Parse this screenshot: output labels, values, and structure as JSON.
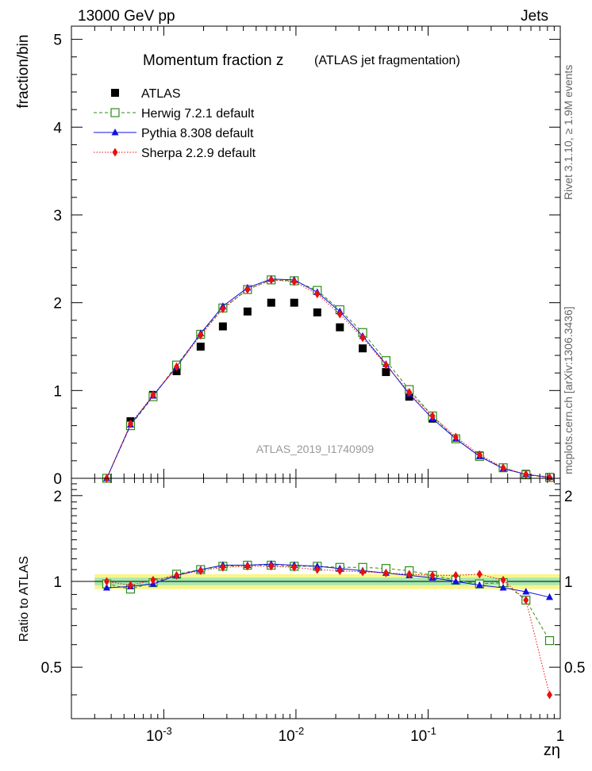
{
  "header": {
    "energy_label": "13000 GeV pp",
    "category_label": "Jets"
  },
  "sidebar": {
    "rivet_label": "Rivet 3.1.10, ≥ 1.9M events",
    "mcplots_label": "mcplots.cern.ch [arXiv:1306.3436]"
  },
  "chart_data": [
    {
      "type": "scatter",
      "title": "Momentum fraction z",
      "subtitle": "(ATLAS jet fragmentation)",
      "watermark": "ATLAS_2019_I1740909",
      "xlabel": "",
      "ylabel": "fraction/bin",
      "xscale": "log",
      "xlim": [
        0.0002,
        1
      ],
      "ylim": [
        0,
        5.15
      ],
      "yticks": [
        1,
        2,
        3,
        4,
        5
      ],
      "xtick_labels": [
        "10^-3",
        "10^-2",
        "10^-1",
        "1"
      ],
      "legend_position": "top-left",
      "x": [
        0.00037,
        0.00056,
        0.00083,
        0.00125,
        0.0019,
        0.0028,
        0.0043,
        0.0065,
        0.0097,
        0.0145,
        0.0215,
        0.032,
        0.048,
        0.072,
        0.108,
        0.162,
        0.245,
        0.37,
        0.55,
        0.83
      ],
      "series": [
        {
          "name": "ATLAS",
          "color": "#000000",
          "marker": "square",
          "values": [
            0.0,
            0.65,
            0.95,
            1.22,
            1.5,
            1.73,
            1.9,
            2.0,
            2.0,
            1.89,
            1.72,
            1.48,
            1.21,
            0.93,
            0.68,
            0.45,
            0.26,
            0.12,
            0.05,
            0.015
          ]
        },
        {
          "name": "Herwig 7.2.1 default",
          "color": "#2e8b18",
          "marker": "open-square",
          "dash": "4,3",
          "values": [
            0.0,
            0.6,
            0.93,
            1.29,
            1.64,
            1.94,
            2.15,
            2.26,
            2.25,
            2.14,
            1.92,
            1.66,
            1.34,
            1.01,
            0.71,
            0.45,
            0.25,
            0.12,
            0.04,
            0.01
          ]
        },
        {
          "name": "Pythia 8.308 default",
          "color": "#1010e0",
          "marker": "triangle",
          "dash": "",
          "values": [
            0.0,
            0.61,
            0.94,
            1.27,
            1.65,
            1.96,
            2.17,
            2.27,
            2.26,
            2.12,
            1.9,
            1.62,
            1.3,
            0.96,
            0.68,
            0.45,
            0.25,
            0.11,
            0.045,
            0.012
          ]
        },
        {
          "name": "Sherpa 2.2.9 default",
          "color": "#e81010",
          "marker": "diamond",
          "dash": "1.5,2",
          "values": [
            0.0,
            0.62,
            0.95,
            1.27,
            1.63,
            1.93,
            2.15,
            2.26,
            2.24,
            2.1,
            1.87,
            1.6,
            1.29,
            0.98,
            0.71,
            0.47,
            0.27,
            0.12,
            0.045,
            0.01
          ]
        }
      ]
    },
    {
      "type": "scatter",
      "title": "",
      "xlabel": "zη",
      "ylabel": "Ratio to ATLAS",
      "xscale": "log",
      "xlim": [
        0.0002,
        1
      ],
      "ylim": [
        0.33,
        2.3
      ],
      "yticks": [
        0.5,
        1,
        2
      ],
      "band_inner": [
        0.97,
        1.03
      ],
      "band_outer": [
        0.94,
        1.06
      ],
      "x": [
        0.00037,
        0.00056,
        0.00083,
        0.00125,
        0.0019,
        0.0028,
        0.0043,
        0.0065,
        0.0097,
        0.0145,
        0.0215,
        0.032,
        0.048,
        0.072,
        0.108,
        0.162,
        0.245,
        0.37,
        0.55,
        0.83
      ],
      "series": [
        {
          "name": "Herwig 7.2.1 default",
          "color": "#2e8b18",
          "marker": "open-square",
          "dash": "4,3",
          "values": [
            0.98,
            0.94,
            0.99,
            1.06,
            1.1,
            1.13,
            1.14,
            1.14,
            1.13,
            1.13,
            1.12,
            1.12,
            1.11,
            1.09,
            1.05,
            1.01,
            0.98,
            0.99,
            0.86,
            0.62
          ]
        },
        {
          "name": "Pythia 8.308 default",
          "color": "#1010e0",
          "marker": "triangle",
          "dash": "",
          "values": [
            0.95,
            0.96,
            0.98,
            1.05,
            1.1,
            1.14,
            1.14,
            1.15,
            1.14,
            1.13,
            1.11,
            1.09,
            1.07,
            1.05,
            1.03,
            1.0,
            0.97,
            0.95,
            0.92,
            0.88
          ]
        },
        {
          "name": "Sherpa 2.2.9 default",
          "color": "#e81010",
          "marker": "diamond",
          "dash": "1.5,2",
          "values": [
            1.0,
            0.97,
            1.01,
            1.05,
            1.09,
            1.12,
            1.13,
            1.13,
            1.12,
            1.1,
            1.09,
            1.08,
            1.07,
            1.06,
            1.05,
            1.05,
            1.06,
            1.01,
            0.86,
            0.4
          ]
        }
      ]
    }
  ]
}
